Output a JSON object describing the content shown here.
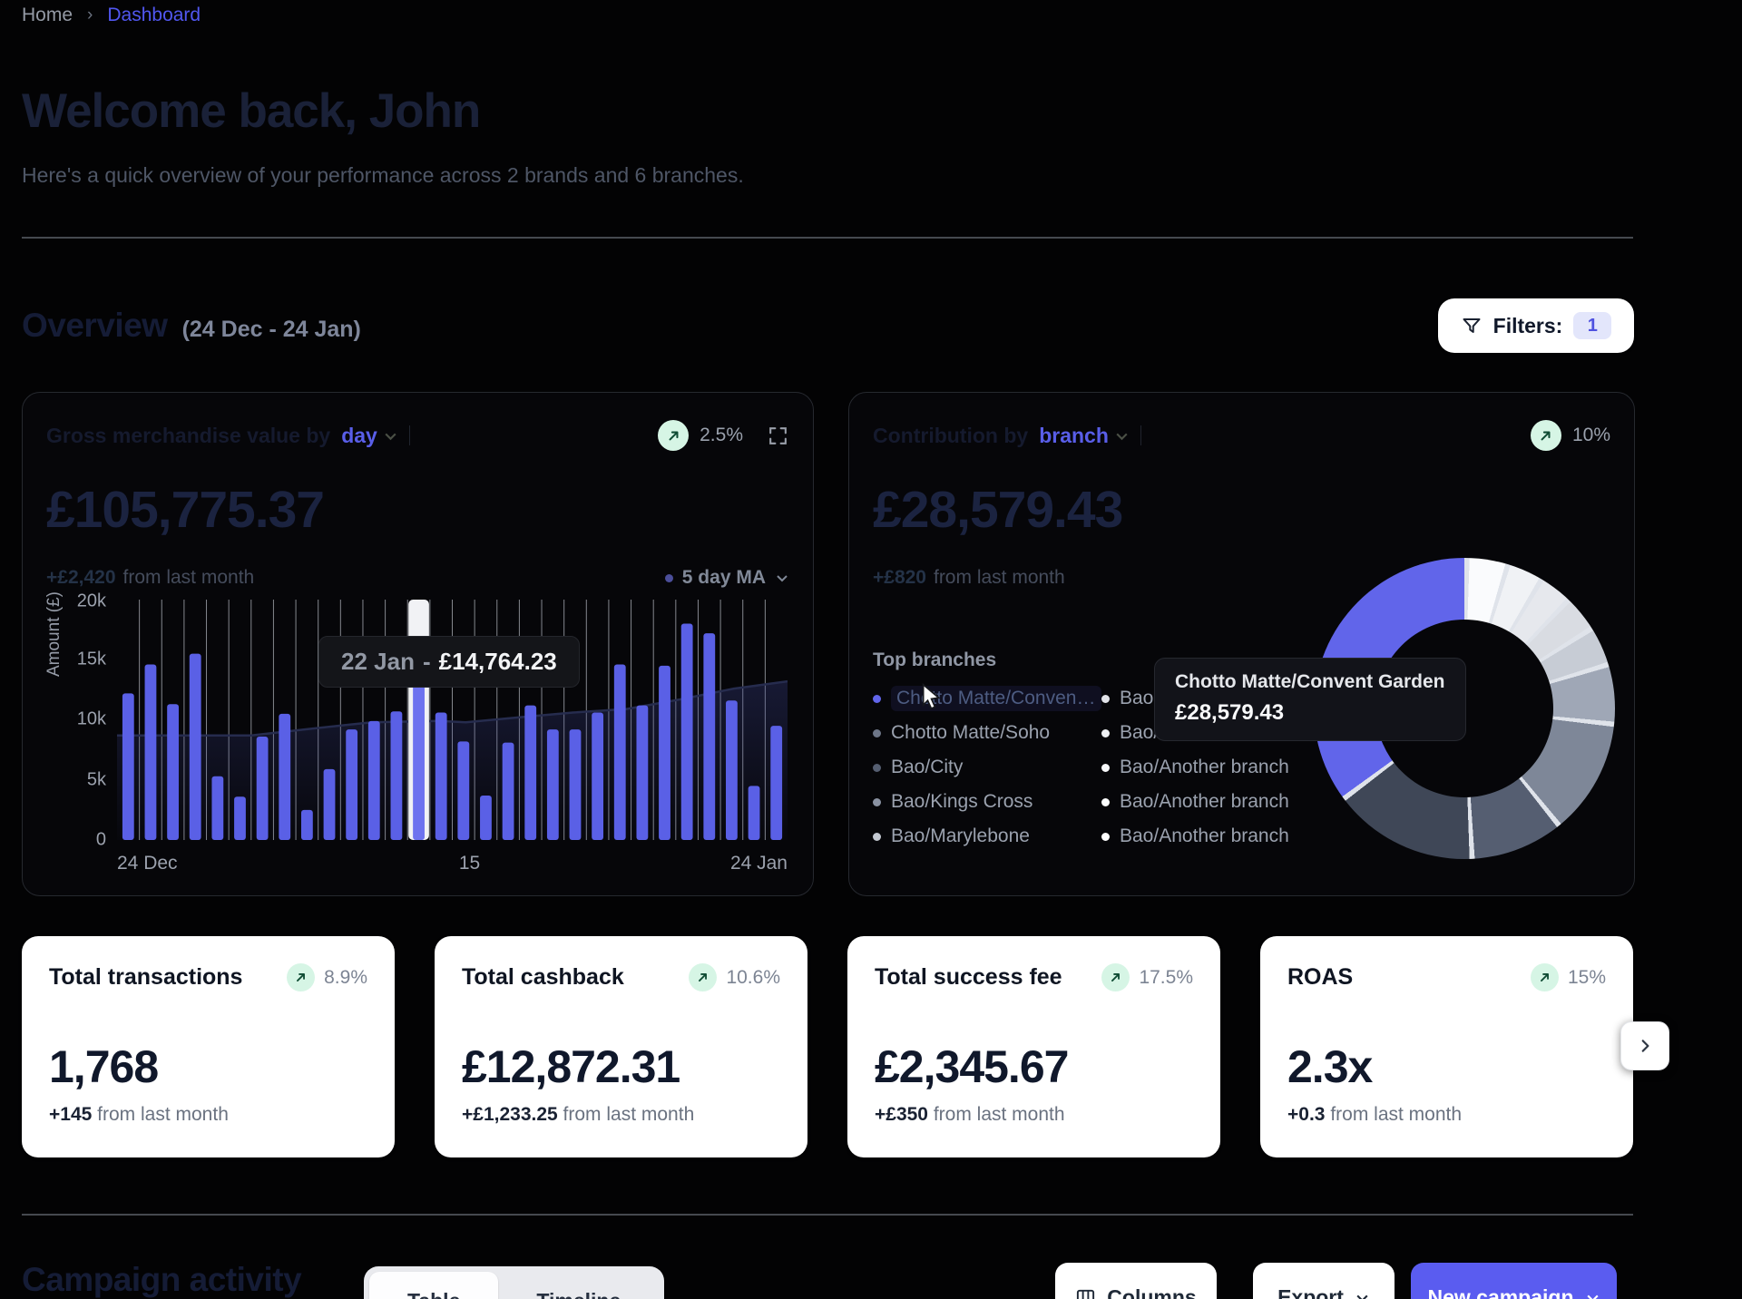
{
  "breadcrumb": {
    "home": "Home",
    "separator": "›",
    "current": "Dashboard"
  },
  "welcome": {
    "title": "Welcome back, John",
    "subtitle": "Here's a quick overview of your performance across 2 brands and 6 branches."
  },
  "overview": {
    "title": "Overview",
    "date_range": "(24 Dec - 24 Jan)",
    "filters_label": "Filters:",
    "filters_count": "1"
  },
  "gmv_card": {
    "title_prefix": "Gross merchandise value by",
    "period_selector": "day",
    "delta_badge": "2.5%",
    "value": "£105,775.37",
    "change": "+£2,420",
    "change_suffix": "from last month"
  },
  "branch_card": {
    "title_prefix": "Contribution by",
    "dimension_selector": "branch",
    "delta_badge": "10%",
    "value": "£28,579.43",
    "change": "+£820",
    "change_suffix": "from last month",
    "top_branches_label": "Top branches",
    "tooltip": {
      "title": "Chotto Matte/Convent Garden",
      "value": "£28,579.43"
    }
  },
  "stats": {
    "cards": [
      {
        "title": "Total transactions",
        "delta_badge": "8.9%",
        "value": "1,768",
        "change": "+145",
        "change_suffix": "from last month"
      },
      {
        "title": "Total cashback",
        "delta_badge": "10.6%",
        "value": "£12,872.31",
        "change": "+£1,233.25",
        "change_suffix": "from last month"
      },
      {
        "title": "Total success fee",
        "delta_badge": "17.5%",
        "value": "£2,345.67",
        "change": "+£350",
        "change_suffix": "from last month"
      },
      {
        "title": "ROAS",
        "delta_badge": "15%",
        "value": "2.3x",
        "change": "+0.3",
        "change_suffix": "from last month"
      }
    ]
  },
  "campaign_section": {
    "title": "Campaign activity",
    "tabs": [
      {
        "label": "Table",
        "active": true
      },
      {
        "label": "Timeline",
        "active": false
      }
    ],
    "columns_button": "Columns",
    "export_button": "Export",
    "new_campaign_button": "New campaign"
  },
  "colors": {
    "accent": "#5a5cf0",
    "bar": "#5a60e6",
    "bar_highlight": "#6d72ef",
    "highlight_column": "#f1f2f5",
    "positive_badge_bg": "#d6f5e5",
    "positive_badge_arrow": "#0f4c34",
    "grid_line": "#b5b9c2",
    "ma_line": "#262c4e",
    "donut_separator": "#dfe3ea"
  },
  "chart_data": [
    {
      "id": "gmv_daily_bars",
      "type": "bar",
      "title": "Gross merchandise value by day",
      "ylabel": "Amount (£)",
      "ylim": [
        0,
        20000
      ],
      "yticks": [
        "20k",
        "15k",
        "10k",
        "5k",
        "0"
      ],
      "x_axis_labels": [
        "24 Dec",
        "15",
        "24 Jan"
      ],
      "values": [
        12200,
        14600,
        11300,
        15500,
        5300,
        3600,
        8600,
        10500,
        2500,
        5900,
        9200,
        9900,
        10700,
        14764.23,
        10600,
        8200,
        3700,
        8100,
        11200,
        9200,
        9200,
        10600,
        14600,
        11200,
        14500,
        18000,
        17200,
        11600,
        4500,
        9500
      ],
      "highlight_index": 13,
      "tooltip": {
        "date": "22 Jan",
        "separator": "-",
        "value": "£14,764.23"
      },
      "moving_average": {
        "label": "5 day MA",
        "window_days": 5,
        "points": [
          [
            0,
            8700
          ],
          [
            0.2,
            8700
          ],
          [
            0.28,
            9200
          ],
          [
            0.38,
            9800
          ],
          [
            0.48,
            9900
          ],
          [
            0.52,
            9800
          ],
          [
            0.6,
            10200
          ],
          [
            0.68,
            10600
          ],
          [
            0.76,
            10900
          ],
          [
            0.84,
            11700
          ],
          [
            0.92,
            12600
          ],
          [
            1,
            13200
          ]
        ]
      },
      "grid": "vertical",
      "legend_position": "top-right"
    },
    {
      "id": "branch_contribution_donut",
      "type": "pie",
      "donut": true,
      "total_value": "£28,579.43",
      "slices": [
        {
          "label": "Bao/Another branch",
          "color": "#fafbfd",
          "pct": 4.4
        },
        {
          "label": "Bao/Another branch",
          "color": "#f0f2f5",
          "pct": 3.9
        },
        {
          "label": "Bao/Another branch",
          "color": "#e6e8ed",
          "pct": 3.6
        },
        {
          "label": "Bao/Camden",
          "color": "#d9dce2",
          "pct": 3.9
        },
        {
          "label": "Bao",
          "color": "#c7ccd5",
          "pct": 4.2
        },
        {
          "label": "Bao/Marylebone",
          "color": "#9fa7b6",
          "pct": 6.4
        },
        {
          "label": "Bao/Kings Cross",
          "color": "#7e8798",
          "pct": 12.5
        },
        {
          "label": "Bao/City",
          "color": "#555e71",
          "pct": 10.0
        },
        {
          "label": "Chotto Matte/Soho",
          "color": "#3f4757",
          "pct": 15.6
        },
        {
          "label": "Chotto Matte/Convent Garden",
          "color": "#6165ea",
          "pct": 35.5
        }
      ],
      "legend": [
        {
          "label": "Chotto Matte/Convent...",
          "color": "#6165ea",
          "highlighted": true
        },
        {
          "label": "Chotto Matte/Soho",
          "color": "#6d7688",
          "highlighted": false
        },
        {
          "label": "Bao/City",
          "color": "#555e71",
          "highlighted": false
        },
        {
          "label": "Bao/Kings Cross",
          "color": "#8a92a2",
          "highlighted": false
        },
        {
          "label": "Bao/Marylebone",
          "color": "#c3c8d1",
          "highlighted": false
        },
        {
          "label": "Bao",
          "color": "#e2e4e9",
          "highlighted": false
        },
        {
          "label": "Bao/Camden",
          "color": "#eef0f3",
          "highlighted": false
        },
        {
          "label": "Bao/Another branch",
          "color": "#f7f8fa",
          "highlighted": false
        },
        {
          "label": "Bao/Another branch",
          "color": "#fbfcfd",
          "highlighted": false
        },
        {
          "label": "Bao/Another branch",
          "color": "#ffffff",
          "highlighted": false
        }
      ]
    }
  ]
}
